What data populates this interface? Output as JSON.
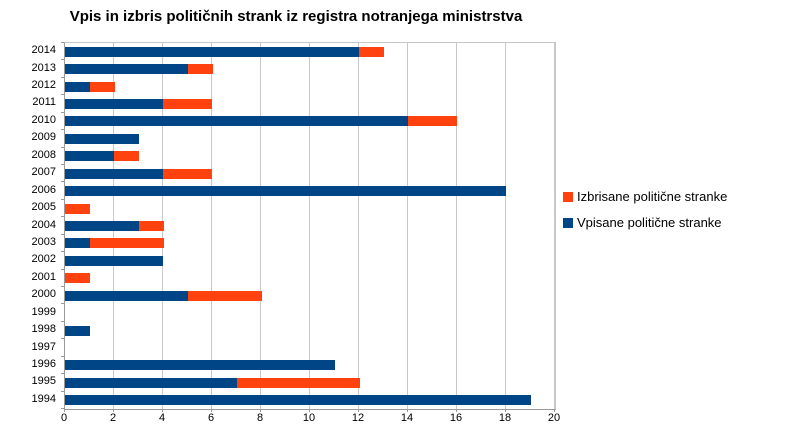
{
  "title": "Vpis in izbris političnih strank iz registra notranjega ministrstva",
  "legend": {
    "position": "right",
    "items": [
      {
        "name": "izbrisane",
        "label": "Izbrisane politične stranke",
        "color": "#ff420e"
      },
      {
        "name": "vpisane",
        "label": "Vpisane politične stranke",
        "color": "#004586"
      }
    ]
  },
  "chart_data": {
    "type": "bar",
    "orientation": "horizontal",
    "stacked": true,
    "title": "Vpis in izbris političnih strank iz registra notranjega ministrstva",
    "categories": [
      "2014",
      "2013",
      "2012",
      "2011",
      "2010",
      "2009",
      "2008",
      "2007",
      "2006",
      "2005",
      "2004",
      "2003",
      "2002",
      "2001",
      "2000",
      "1999",
      "1998",
      "1997",
      "1996",
      "1995",
      "1994"
    ],
    "series": [
      {
        "name": "Vpisane politične stranke",
        "color": "#004586",
        "values": [
          12,
          5,
          1,
          4,
          14,
          3,
          2,
          4,
          18,
          0,
          3,
          1,
          4,
          0,
          5,
          0,
          1,
          0,
          11,
          7,
          19
        ]
      },
      {
        "name": "Izbrisane politične stranke",
        "color": "#ff420e",
        "values": [
          1,
          1,
          1,
          2,
          2,
          0,
          1,
          2,
          0,
          1,
          1,
          3,
          0,
          1,
          3,
          0,
          0,
          0,
          0,
          5,
          0
        ]
      }
    ],
    "xlim": [
      0,
      20
    ],
    "xticks": [
      0,
      2,
      4,
      6,
      8,
      10,
      12,
      14,
      16,
      18,
      20
    ],
    "xlabel": "",
    "ylabel": "",
    "grid": "vertical",
    "legend_position": "right"
  },
  "colors": {
    "background": "#ffffff",
    "gridline": "#c9c9c9",
    "axis": "#9a9a9a",
    "text": "#000000",
    "bar_blue": "#004586",
    "bar_orange": "#ff420e"
  }
}
